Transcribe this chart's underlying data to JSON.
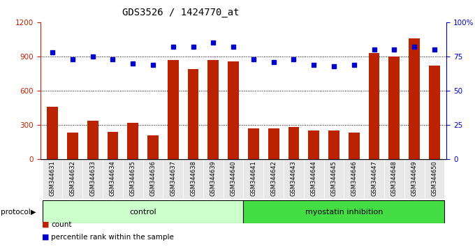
{
  "title": "GDS3526 / 1424770_at",
  "samples": [
    "GSM344631",
    "GSM344632",
    "GSM344633",
    "GSM344634",
    "GSM344635",
    "GSM344636",
    "GSM344637",
    "GSM344638",
    "GSM344639",
    "GSM344640",
    "GSM344641",
    "GSM344642",
    "GSM344643",
    "GSM344644",
    "GSM344645",
    "GSM344646",
    "GSM344647",
    "GSM344648",
    "GSM344649",
    "GSM344650"
  ],
  "counts": [
    460,
    235,
    340,
    240,
    320,
    210,
    870,
    790,
    870,
    860,
    270,
    270,
    280,
    255,
    250,
    235,
    930,
    900,
    1060,
    820
  ],
  "percentile": [
    78,
    73,
    75,
    73,
    70,
    69,
    82,
    82,
    85,
    82,
    73,
    71,
    73,
    69,
    68,
    69,
    80,
    80,
    82,
    80
  ],
  "control_count": 10,
  "groups": [
    "control",
    "myostatin inhibition"
  ],
  "ctrl_color": "#ccffcc",
  "myo_color": "#44dd44",
  "bar_color": "#bb2200",
  "dot_color": "#0000cc",
  "bg_color": "#ffffff",
  "tick_label_bg": "#d0d0d0",
  "ylim_left": [
    0,
    1200
  ],
  "ylim_right": [
    0,
    100
  ],
  "yticks_left": [
    0,
    300,
    600,
    900,
    1200
  ],
  "yticks_right": [
    0,
    25,
    50,
    75,
    100
  ],
  "grid_lines": [
    300,
    600,
    900
  ],
  "title_fontsize": 10,
  "tick_fontsize": 7.5
}
